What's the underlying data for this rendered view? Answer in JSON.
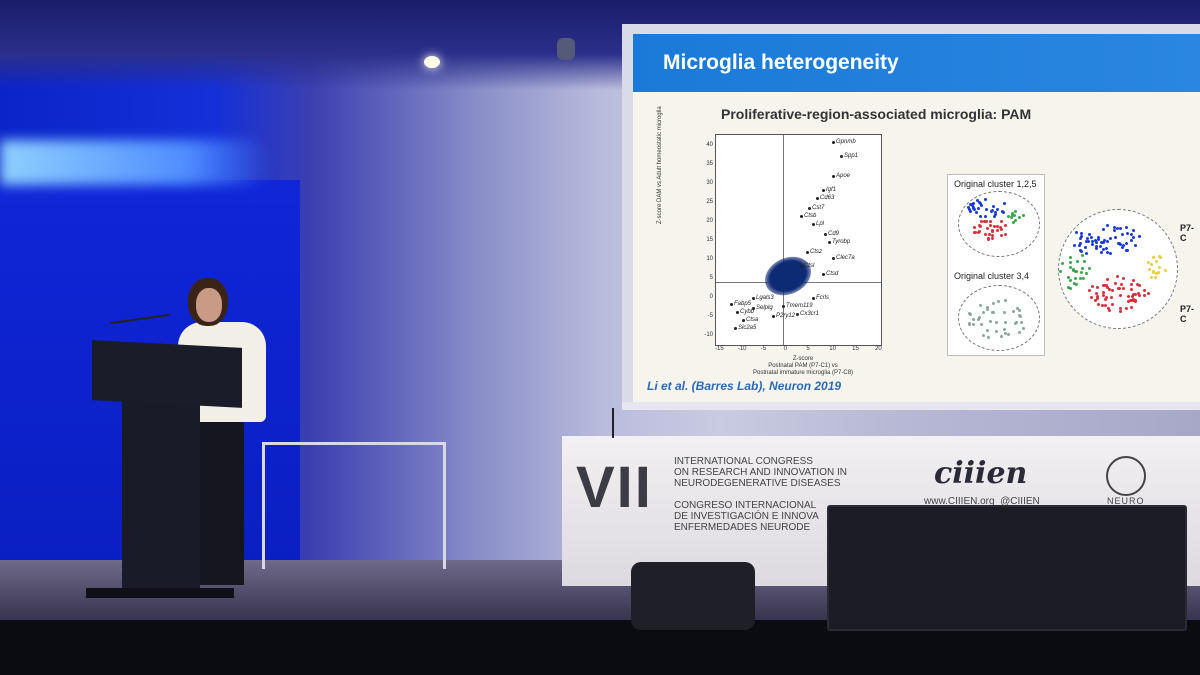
{
  "slide": {
    "title": "Microglia heterogeneity",
    "subtitle": "Proliferative-region-associated microglia: PAM",
    "citation": "Li et al. (Barres Lab), Neuron 2019",
    "scatter": {
      "y_axis_label": "Z-score DAM vs Adult homeostatic microglia",
      "x_axis_label": "Z-score\nPostnatal PAM (P7-C1) vs\nPostnatal immature microglia (P7-C8)",
      "y_ticks": [
        "40",
        "35",
        "30",
        "25",
        "20",
        "15",
        "10",
        "5",
        "0",
        "-5",
        "-10"
      ],
      "x_ticks": [
        "-15",
        "-10",
        "-5",
        "0",
        "5",
        "10",
        "15",
        "20"
      ],
      "genes": [
        "Gpnmb",
        "Spp1",
        "Apoe",
        "Igf1",
        "Cd63",
        "Cst7",
        "Ctsb",
        "Lpl",
        "Cd9",
        "Tyrobp",
        "Ctsz",
        "Clec7a",
        "Ctsl",
        "Ctsd",
        "Lgals3",
        "Fabp5",
        "Cybb",
        "Ctsa",
        "Slc2a5",
        "Selplg",
        "Tmem119",
        "P2ry12",
        "Cx3cr1",
        "Fcrls"
      ]
    },
    "clusters": {
      "label_1": "Original cluster 1,2,5",
      "label_2": "Original cluster 3,4",
      "right_label_1": "P7-C",
      "right_label_2": "P7-C"
    }
  },
  "banner": {
    "roman_numeral": "VII",
    "english_text": "INTERNATIONAL CONGRESS\nON RESEARCH AND INNOVATION IN\nNEURODEGENERATIVE DISEASES",
    "spanish_text": "CONGRESO INTERNACIONAL\nDE INVESTIGACIÓN E INNOVA\nENFERMEDADES NEURODE",
    "logo_text": "ciiien",
    "website": "www.CIIIEN.org",
    "handle": "@CIIIEN",
    "neuro_label": "NEURO"
  },
  "colors": {
    "slide_header": "#1b7ad8",
    "citation": "#2a6ab8",
    "wall_blue": "#0a24c8"
  }
}
